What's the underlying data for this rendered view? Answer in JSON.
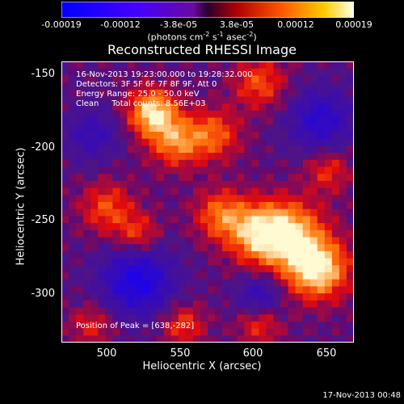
{
  "chart_data": {
    "type": "heatmap",
    "title": "Reconstructed RHESSI Image",
    "xlabel": "Heliocentric X (arcsec)",
    "ylabel": "Heliocentric Y (arcsec)",
    "xlim": [
      470,
      662
    ],
    "ylim": [
      -332,
      -140
    ],
    "xticks": [
      "500",
      "550",
      "600",
      "650"
    ],
    "yticks": [
      "-150",
      "-200",
      "-250",
      "-300"
    ],
    "colorbar": {
      "ticks": [
        "-0.00019",
        "-0.00012",
        "-3.8e-05",
        "3.8e-05",
        "0.00012",
        "0.00019"
      ],
      "range": [
        -0.00019,
        0.00019
      ],
      "unit_text": "(photons cm",
      "unit_sup1": "-2",
      "unit_mid": " s",
      "unit_sup2": "-1",
      "unit_end": " asec",
      "unit_sup3": "-2",
      "unit_close": ")"
    },
    "annotations": [
      "16-Nov-2013 19:23:00.000 to 19:28:32.000",
      "Detectors: 3F 5F 6F 7F 8F 9F, Att 0",
      "Energy Range: 25.0 - 50.0 keV",
      "Clean     Total counts: 8.56E+03"
    ],
    "peak_label": "Position of Peak = [638,-282]",
    "peak": [
      638,
      -282
    ]
  },
  "footer": "17-Nov-2013 00:48"
}
